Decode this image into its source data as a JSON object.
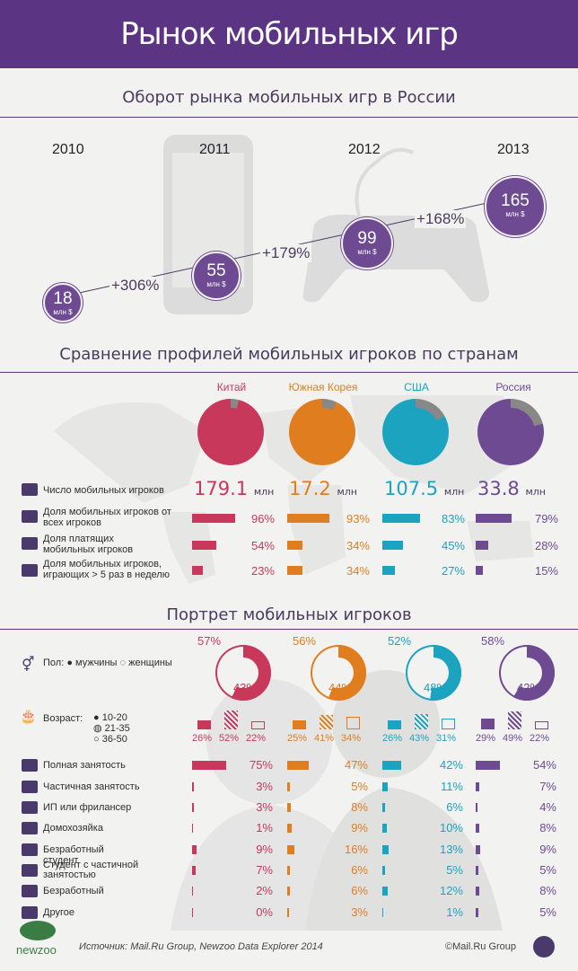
{
  "title": "Рынок мобильных игр",
  "section1": {
    "title": "Оборот рынка мобильных игр в России",
    "years": [
      "2010",
      "2011",
      "2012",
      "2013"
    ],
    "values": [
      {
        "value": "18",
        "unit": "млн $"
      },
      {
        "value": "55",
        "unit": "млн $"
      },
      {
        "value": "99",
        "unit": "млн $"
      },
      {
        "value": "165",
        "unit": "млн $"
      }
    ],
    "growth": [
      "+306%",
      "+179%",
      "+168%"
    ]
  },
  "section2": {
    "title": "Сравнение профилей мобильных игроков по странам",
    "countries": [
      {
        "name": "Китай",
        "color": "#c8385a",
        "players": "179.1",
        "unit": "млн",
        "share_all": "96%",
        "share_paying": "54%",
        "share_5x": "23%"
      },
      {
        "name": "Южная Корея",
        "color": "#e07d1f",
        "players": "17.2",
        "unit": "млн",
        "share_all": "93%",
        "share_paying": "34%",
        "share_5x": "34%"
      },
      {
        "name": "США",
        "color": "#1ba3c0",
        "players": "107.5",
        "unit": "млн",
        "share_all": "83%",
        "share_paying": "45%",
        "share_5x": "27%"
      },
      {
        "name": "Россия",
        "color": "#6e4a93",
        "players": "33.8",
        "unit": "млн",
        "share_all": "79%",
        "share_paying": "28%",
        "share_5x": "15%"
      }
    ],
    "rows": [
      "Число мобильных игроков",
      "Доля мобильных игроков от всех игроков",
      "Доля платящих мобильных игроков",
      "Доля мобильных игроков, играющих > 5 раз в неделю"
    ]
  },
  "section3": {
    "title": "Портрет мобильных игроков",
    "gender_label": "Пол:",
    "male": "мужчины",
    "female": "женщины",
    "age_label": "Возраст:",
    "age_groups": [
      "10-20",
      "21-35",
      "36-50"
    ],
    "gender": [
      {
        "men": "57%",
        "women": "43%"
      },
      {
        "men": "56%",
        "women": "44%"
      },
      {
        "men": "52%",
        "women": "48%"
      },
      {
        "men": "58%",
        "women": "42%"
      }
    ],
    "age": [
      [
        "26%",
        "52%",
        "22%"
      ],
      [
        "25%",
        "41%",
        "34%"
      ],
      [
        "26%",
        "43%",
        "31%"
      ],
      [
        "29%",
        "49%",
        "22%"
      ]
    ],
    "employment_labels": [
      "Полная занятость",
      "Частичная занятость",
      "ИП или фрилансер",
      "Домохозяйка",
      "Безработный студент",
      "Студент с частичной занятостью",
      "Безработный",
      "Другое"
    ],
    "employment": [
      [
        "75%",
        "3%",
        "3%",
        "1%",
        "9%",
        "7%",
        "2%",
        "0%"
      ],
      [
        "47%",
        "5%",
        "8%",
        "9%",
        "16%",
        "6%",
        "6%",
        "3%"
      ],
      [
        "42%",
        "11%",
        "6%",
        "10%",
        "13%",
        "5%",
        "12%",
        "1%"
      ],
      [
        "54%",
        "7%",
        "4%",
        "8%",
        "9%",
        "5%",
        "8%",
        "5%"
      ]
    ]
  },
  "footer": {
    "logo": "newzoo",
    "source": "Источник: Mail.Ru Group, Newzoo Data Explorer 2014",
    "copyright": "©Mail.Ru Group"
  }
}
